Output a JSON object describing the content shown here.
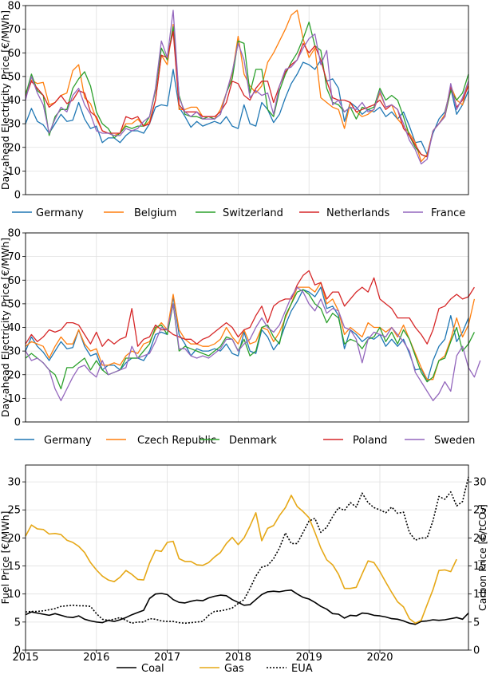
{
  "colors": {
    "blue": "#1f77b4",
    "orange": "#ff7f0e",
    "green": "#2ca02c",
    "red": "#d62728",
    "purple": "#9467bd",
    "coal": "#000000",
    "gas": "#e6a817",
    "eua": "#000000"
  },
  "chart_data": [
    {
      "type": "line",
      "ylabel": "Day-ahead Electricity Price [€/MWh]",
      "x_range": [
        "2015-01",
        "2020-12"
      ],
      "x_tick_labels": [
        "2015",
        "2016",
        "2017",
        "2018",
        "2019",
        "2020"
      ],
      "ylim": [
        0,
        80
      ],
      "y_ticks": [
        "0",
        "10",
        "20",
        "30",
        "40",
        "50",
        "60",
        "70",
        "80"
      ],
      "grid": true,
      "legend_position": "below",
      "series": [
        {
          "name": "Germany",
          "color_key": "blue",
          "values": [
            30,
            36.5,
            31,
            29.5,
            26,
            30,
            34,
            31,
            31.5,
            39,
            32,
            28,
            29,
            22,
            24,
            24,
            22,
            25,
            27,
            27,
            26,
            30,
            37,
            38,
            37.5,
            53,
            37,
            33,
            28.5,
            31,
            29,
            30,
            31,
            30,
            33,
            29,
            28,
            38,
            30,
            29,
            39,
            36,
            30.5,
            34,
            41,
            47,
            51,
            56,
            55,
            53,
            57,
            48,
            49,
            45,
            31,
            39,
            37,
            34,
            36,
            35,
            37,
            33,
            35,
            32,
            35,
            29,
            22,
            22.5,
            17,
            26,
            32,
            35,
            45,
            34,
            38,
            44
          ]
        },
        {
          "name": "Belgium",
          "color_key": "orange",
          "values": [
            43,
            48.5,
            47,
            47.5,
            38,
            39,
            42,
            43,
            52.5,
            55,
            41,
            38.5,
            32,
            27,
            26,
            25,
            26,
            30,
            30,
            32,
            29,
            31,
            40,
            59,
            55,
            72,
            36,
            36,
            37,
            37,
            33,
            33,
            32,
            36,
            43,
            51,
            67,
            51,
            46,
            43,
            46,
            56,
            60,
            65,
            70,
            76,
            78,
            66,
            58,
            62,
            41,
            39,
            37,
            36,
            28,
            39,
            35,
            33,
            34,
            36,
            43,
            37,
            38,
            32,
            29,
            26,
            22,
            14,
            17,
            27,
            30,
            34,
            46,
            40,
            38,
            48
          ]
        },
        {
          "name": "Switzerland",
          "color_key": "green",
          "values": [
            42,
            51,
            44,
            42,
            25,
            33,
            36,
            36,
            45,
            49,
            52,
            46,
            35,
            30,
            28,
            24,
            26,
            29,
            28,
            29,
            29,
            33,
            44,
            62,
            57,
            71,
            42,
            34,
            33,
            33,
            32,
            33,
            32,
            34,
            43,
            49,
            65,
            64,
            43,
            53,
            53,
            36,
            33,
            44,
            51,
            56,
            60,
            66,
            73,
            63,
            61,
            45,
            39,
            38,
            35,
            37,
            32,
            37,
            36,
            37,
            45,
            40,
            42,
            40,
            33,
            25,
            20,
            17,
            16,
            27,
            30,
            33,
            44,
            40,
            43,
            51
          ]
        },
        {
          "name": "Netherlands",
          "color_key": "red",
          "values": [
            41,
            48,
            45,
            42,
            37,
            39,
            42,
            38.5,
            40,
            44,
            43,
            35,
            33,
            27,
            26,
            26,
            26,
            33,
            32,
            33,
            29,
            30,
            40,
            59,
            58,
            69,
            38,
            35,
            35,
            35,
            33,
            33,
            33,
            35,
            39,
            48,
            47,
            42,
            40,
            45,
            48,
            48,
            39,
            46,
            52,
            55,
            57,
            64,
            60,
            63,
            57,
            48,
            41,
            40,
            40,
            39,
            35,
            36,
            37,
            38,
            40,
            36,
            38,
            36,
            28,
            25,
            21,
            17,
            16,
            27,
            30,
            33,
            46,
            37,
            40,
            46
          ]
        },
        {
          "name": "France",
          "color_key": "purple",
          "values": [
            40,
            50,
            43,
            38,
            26,
            32,
            37,
            35,
            42,
            45,
            38,
            34,
            27,
            26,
            26,
            25,
            25,
            28,
            27,
            28,
            31,
            33,
            45,
            65,
            58,
            78,
            41,
            35,
            33,
            35,
            32,
            32,
            32,
            34,
            43,
            52,
            64,
            57,
            41,
            44,
            42,
            43,
            34,
            46,
            53,
            54,
            57,
            62,
            66,
            68,
            55,
            61,
            38,
            40,
            35,
            37,
            36,
            39,
            35,
            36,
            44,
            37,
            38,
            36,
            30,
            23,
            19,
            13,
            15,
            27,
            30,
            33,
            47,
            36,
            41,
            48
          ]
        }
      ]
    },
    {
      "type": "line",
      "ylabel": "Day-ahead Electricity Price [€/MWh]",
      "x_range": [
        "2015-01",
        "2020-12"
      ],
      "ylim": [
        0,
        80
      ],
      "y_ticks": [
        "0",
        "10",
        "20",
        "30",
        "40",
        "50",
        "60",
        "70",
        "80"
      ],
      "grid": true,
      "legend_position": "below",
      "series": [
        {
          "name": "Germany",
          "color_key": "blue",
          "values": [
            30,
            36,
            32,
            29.5,
            26,
            30,
            34,
            31,
            31.5,
            39,
            32,
            28,
            29,
            22,
            24,
            24,
            22,
            25,
            27,
            27,
            26,
            30,
            37,
            38,
            37,
            53,
            37,
            33,
            28,
            31,
            30,
            30,
            31,
            30,
            33,
            29,
            28,
            38,
            30,
            29,
            39,
            36,
            30.5,
            34,
            41,
            47,
            51,
            56,
            55,
            53,
            57,
            48,
            49,
            45,
            31,
            39,
            37,
            34,
            36,
            35,
            37,
            32,
            35,
            32,
            35,
            29,
            22,
            22.5,
            17,
            26,
            32,
            35,
            45,
            34,
            38,
            44
          ]
        },
        {
          "name": "Czech Republic",
          "color_key": "orange",
          "values": [
            32,
            34,
            33,
            32,
            27,
            32,
            36,
            33,
            33,
            39,
            33,
            30,
            31,
            24,
            24,
            25,
            24,
            28,
            30,
            29,
            33,
            34,
            39,
            42,
            39,
            54,
            39,
            35,
            33,
            33,
            32,
            32,
            33,
            35,
            40,
            36,
            33,
            39,
            33,
            34,
            40,
            39,
            34,
            38,
            44,
            50,
            57,
            57,
            57,
            55,
            59,
            50,
            52,
            47,
            37,
            40,
            38,
            36,
            42,
            40,
            40,
            38,
            40,
            36,
            41,
            35,
            29,
            23,
            18,
            18,
            26,
            28,
            35,
            44,
            36,
            41,
            52
          ]
        },
        {
          "name": "Denmark",
          "color_key": "green",
          "values": [
            27,
            29,
            27,
            25,
            22,
            20,
            14,
            23,
            23,
            25,
            27,
            22,
            26,
            22,
            20,
            21,
            22,
            27,
            27,
            27,
            30,
            33,
            40,
            41,
            37,
            50,
            30,
            32,
            31,
            30,
            29,
            28,
            30,
            32,
            36,
            35,
            30,
            35,
            28,
            30,
            40,
            41,
            36,
            33,
            45,
            50,
            55,
            56,
            54,
            50,
            48,
            42,
            46,
            44,
            33,
            35,
            34,
            31,
            35,
            36,
            40,
            34,
            38,
            33,
            39,
            35,
            28,
            21,
            17,
            19,
            26,
            27,
            34,
            40,
            30,
            33,
            38
          ]
        },
        {
          "name": "Poland",
          "color_key": "red",
          "values": [
            33,
            37,
            34,
            36,
            39,
            38,
            39,
            42,
            42,
            41,
            37,
            33,
            38,
            32,
            35,
            33,
            35,
            36,
            48,
            32,
            35,
            36,
            41,
            39,
            39,
            37,
            36,
            35,
            35,
            33,
            35,
            36,
            38,
            40,
            42,
            40,
            36,
            39,
            40,
            45,
            49,
            42,
            49,
            51,
            52,
            52,
            58,
            62,
            64,
            58,
            59,
            52,
            55,
            55,
            49,
            52,
            55,
            57,
            55,
            61,
            52,
            50,
            48,
            44,
            44,
            44,
            40,
            37,
            33,
            39,
            48,
            49,
            52,
            54,
            52,
            53,
            57
          ]
        },
        {
          "name": "Sweden",
          "color_key": "purple",
          "values": [
            30,
            26,
            27,
            25,
            22,
            14,
            9,
            14,
            19,
            23,
            24,
            21,
            19,
            26,
            20,
            21,
            22,
            23,
            32,
            27,
            28,
            29,
            34,
            40,
            39,
            50,
            31,
            31,
            28,
            27,
            28,
            27,
            29,
            31,
            35,
            35,
            30,
            33,
            35,
            40,
            44,
            40,
            38,
            41,
            47,
            53,
            57,
            55,
            50,
            47,
            52,
            46,
            48,
            47,
            40,
            39,
            35,
            25,
            35,
            38,
            37,
            36,
            40,
            37,
            34,
            30,
            21,
            17,
            13,
            9,
            12,
            17,
            13,
            28,
            32,
            23,
            19,
            26
          ]
        }
      ]
    },
    {
      "type": "line",
      "ylabel": "Fuel Price [€/MWh]",
      "y2label": "Carbon Price [€/tCO₂]",
      "x_range": [
        "2015-01",
        "2020-12"
      ],
      "x_tick_labels": [
        "2015",
        "2016",
        "2017",
        "2018",
        "2019",
        "2020"
      ],
      "ylim": [
        0,
        33
      ],
      "y_ticks": [
        "0",
        "5",
        "10",
        "15",
        "20",
        "25",
        "30"
      ],
      "y2lim": [
        0,
        33
      ],
      "y2_ticks": [
        "0",
        "5",
        "10",
        "15",
        "20",
        "25",
        "30"
      ],
      "grid": true,
      "legend_position": "below",
      "series": [
        {
          "name": "Coal",
          "color_key": "coal",
          "axis": "left",
          "style": "solid",
          "values": [
            6.3,
            6.8,
            6.6,
            6.4,
            6.2,
            6.5,
            6.2,
            5.9,
            5.8,
            6.1,
            5.5,
            5.2,
            5.0,
            4.9,
            5.3,
            5.1,
            5.4,
            5.8,
            6.3,
            6.7,
            7.1,
            9.2,
            10.0,
            10.1,
            9.9,
            9.0,
            8.5,
            8.4,
            8.7,
            8.9,
            8.8,
            9.3,
            9.6,
            9.8,
            9.7,
            9.0,
            8.5,
            8.0,
            8.1,
            9.0,
            9.9,
            10.4,
            10.5,
            10.4,
            10.6,
            10.7,
            10.0,
            9.4,
            9.1,
            8.5,
            7.8,
            7.3,
            6.5,
            6.4,
            5.7,
            6.2,
            6.1,
            6.6,
            6.5,
            6.2,
            6.1,
            5.9,
            5.6,
            5.5,
            5.2,
            4.8,
            4.6,
            5.1,
            5.2,
            5.4,
            5.3,
            5.4,
            5.6,
            5.8,
            5.5,
            6.6
          ]
        },
        {
          "name": "Gas",
          "color_key": "gas",
          "axis": "left",
          "style": "solid",
          "values": [
            20.3,
            22.3,
            21.6,
            21.5,
            20.7,
            20.8,
            20.6,
            19.6,
            19.2,
            18.5,
            17.4,
            15.6,
            14.3,
            13.2,
            12.5,
            12.2,
            13.0,
            14.2,
            13.5,
            12.6,
            12.5,
            15.5,
            17.8,
            17.6,
            19.2,
            19.4,
            16.3,
            15.8,
            15.8,
            15.2,
            15.1,
            15.6,
            16.6,
            17.4,
            19.0,
            20.1,
            18.8,
            20.0,
            22.1,
            24.5,
            19.5,
            21.7,
            22.2,
            24.0,
            25.4,
            27.6,
            25.6,
            24.7,
            23.6,
            21.0,
            18.2,
            16.1,
            15.2,
            13.5,
            11.0,
            11.0,
            11.2,
            13.6,
            15.9,
            15.6,
            14.0,
            12.1,
            10.3,
            8.6,
            7.7,
            5.6,
            4.8,
            5.3,
            8.1,
            10.8,
            14.2,
            14.3,
            14.0,
            16.2
          ]
        },
        {
          "name": "EUA",
          "color_key": "eua",
          "axis": "right",
          "style": "dotted",
          "values": [
            6.8,
            6.9,
            6.9,
            7.0,
            7.2,
            7.4,
            7.8,
            7.9,
            8.0,
            7.9,
            7.9,
            7.8,
            6.5,
            5.5,
            5.3,
            5.5,
            5.8,
            5.3,
            4.8,
            5.0,
            5.0,
            5.6,
            5.5,
            5.2,
            5.1,
            5.1,
            4.9,
            4.8,
            4.9,
            5.0,
            5.1,
            6.2,
            6.9,
            7.0,
            7.2,
            7.5,
            8.3,
            9.0,
            11.0,
            13.2,
            14.8,
            15.1,
            16.3,
            18.2,
            20.9,
            19.0,
            19.0,
            21.0,
            23.0,
            23.5,
            21.0,
            21.9,
            23.8,
            25.4,
            24.9,
            26.3,
            25.5,
            28.0,
            26.3,
            25.4,
            25.0,
            24.5,
            25.5,
            24.4,
            24.6,
            21.0,
            19.6,
            20.0,
            20.0,
            23.1,
            27.4,
            26.9,
            28.2,
            25.7,
            26.5,
            30.9
          ]
        }
      ]
    }
  ]
}
